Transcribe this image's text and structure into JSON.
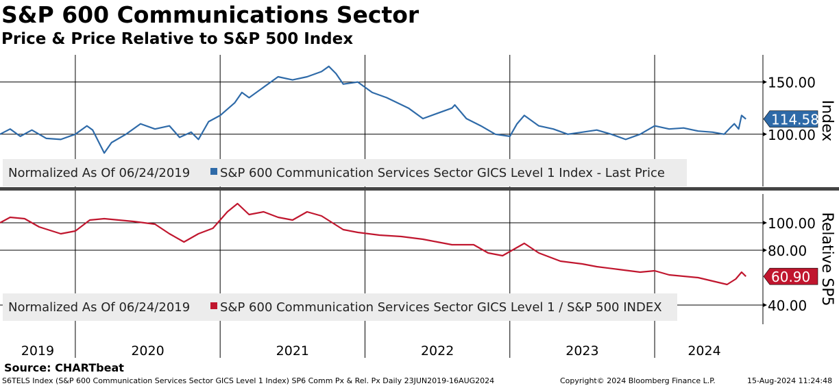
{
  "title": "S&P 600 Communications Sector",
  "subtitle": "Price & Price Relative to S&P 500 Index",
  "source": "Source: CHARTbeat",
  "footer": {
    "left": "S6TELS Index (S&P 600 Communication Services Sector GICS Level 1 Index) SP6 Comm Px & Rel. Px  Daily 23JUN2019-16AUG2024",
    "copyright": "Copyright© 2024 Bloomberg Finance L.P.",
    "timestamp": "15-Aug-2024 11:24:48"
  },
  "chart_data": [
    {
      "type": "line",
      "ylabel": "Index",
      "ylim": [
        50,
        176
      ],
      "yticks": [
        "150.00",
        "100.00"
      ],
      "ytick_values": [
        150,
        100
      ],
      "legend_prefix": "Normalized As Of 06/24/2019",
      "legend": "S&P 600 Communication Services Sector GICS Level 1 Index - Last Price",
      "color": "#2e6aa8",
      "last_label": "114.58",
      "last_value": 114.58,
      "x": [
        2019.48,
        2019.55,
        2019.62,
        2019.7,
        2019.8,
        2019.9,
        2020.0,
        2020.08,
        2020.12,
        2020.2,
        2020.25,
        2020.35,
        2020.45,
        2020.55,
        2020.65,
        2020.72,
        2020.8,
        2020.85,
        2020.92,
        2021.0,
        2021.1,
        2021.15,
        2021.2,
        2021.3,
        2021.4,
        2021.5,
        2021.6,
        2021.7,
        2021.75,
        2021.8,
        2021.85,
        2021.95,
        2022.05,
        2022.15,
        2022.3,
        2022.4,
        2022.5,
        2022.6,
        2022.62,
        2022.7,
        2022.8,
        2022.9,
        2023.0,
        2023.05,
        2023.1,
        2023.2,
        2023.3,
        2023.4,
        2023.5,
        2023.6,
        2023.7,
        2023.8,
        2023.9,
        2024.0,
        2024.1,
        2024.2,
        2024.3,
        2024.4,
        2024.48,
        2024.52,
        2024.55,
        2024.58,
        2024.6,
        2024.63
      ],
      "values": [
        100,
        105,
        98,
        104,
        96,
        95,
        100,
        108,
        104,
        82,
        92,
        100,
        110,
        105,
        108,
        97,
        102,
        95,
        112,
        118,
        130,
        140,
        135,
        145,
        155,
        152,
        155,
        160,
        165,
        158,
        148,
        150,
        140,
        135,
        125,
        115,
        120,
        125,
        128,
        115,
        108,
        100,
        98,
        110,
        118,
        108,
        105,
        100,
        102,
        104,
        100,
        95,
        100,
        108,
        105,
        106,
        103,
        102,
        100,
        106,
        110,
        105,
        118,
        114.58
      ]
    },
    {
      "type": "line",
      "ylabel": "Relative SP5",
      "ylim": [
        26,
        121
      ],
      "yticks": [
        "100.00",
        "80.00",
        "40.00"
      ],
      "ytick_values": [
        100,
        80,
        40
      ],
      "legend_prefix": "Normalized As Of 06/24/2019",
      "legend": "S&P 600 Communication Services Sector GICS Level 1 / S&P 500 INDEX",
      "color": "#c0162e",
      "last_label": "60.90",
      "last_value": 60.9,
      "x": [
        2019.48,
        2019.55,
        2019.65,
        2019.75,
        2019.9,
        2020.0,
        2020.1,
        2020.2,
        2020.4,
        2020.55,
        2020.65,
        2020.75,
        2020.85,
        2020.95,
        2021.05,
        2021.12,
        2021.2,
        2021.3,
        2021.4,
        2021.5,
        2021.6,
        2021.7,
        2021.85,
        2021.95,
        2022.1,
        2022.25,
        2022.4,
        2022.5,
        2022.6,
        2022.75,
        2022.85,
        2022.95,
        2023.05,
        2023.1,
        2023.2,
        2023.35,
        2023.5,
        2023.6,
        2023.75,
        2023.9,
        2024.0,
        2024.1,
        2024.3,
        2024.5,
        2024.56,
        2024.6,
        2024.63
      ],
      "values": [
        100,
        104,
        103,
        97,
        92,
        94,
        102,
        103,
        101,
        99,
        92,
        86,
        92,
        96,
        108,
        114,
        106,
        108,
        104,
        102,
        108,
        105,
        95,
        93,
        91,
        90,
        88,
        86,
        84,
        84,
        78,
        76,
        82,
        85,
        78,
        72,
        70,
        68,
        66,
        64,
        65,
        62,
        60,
        55,
        59,
        64,
        60.9
      ]
    }
  ],
  "x_axis": {
    "labels": [
      "2019",
      "2020",
      "2021",
      "2022",
      "2023",
      "2024"
    ]
  }
}
